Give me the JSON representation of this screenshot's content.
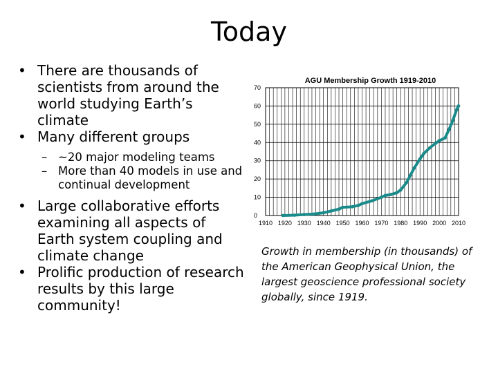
{
  "slide": {
    "title": "Today",
    "bullets": [
      {
        "text": "There are thousands of scientists from around the world studying Earth’s climate"
      },
      {
        "text": "Many different groups",
        "sub": [
          "~20 major modeling teams",
          "More than 40 models in use and continual development"
        ]
      },
      {
        "text": "Large collaborative efforts examining all aspects of Earth system coupling and climate change"
      },
      {
        "text": "Prolific production of research results by this large community!"
      }
    ],
    "bullet_char": "•",
    "dash_char": "–",
    "caption": "Growth in membership (in thousands) of the American Geophysical Union, the largest geoscience professional society globally, since 1919."
  },
  "chart_data": {
    "type": "line",
    "title": "AGU Membership Growth 1919-2010",
    "xlabel": "",
    "ylabel": "",
    "xlim": [
      1910,
      2010
    ],
    "ylim": [
      0,
      70
    ],
    "x_ticks": [
      1910,
      1920,
      1930,
      1940,
      1950,
      1960,
      1970,
      1980,
      1990,
      2000,
      2010
    ],
    "y_ticks": [
      0,
      10,
      20,
      30,
      40,
      50,
      60,
      70
    ],
    "grid": true,
    "legend": "none",
    "series": [
      {
        "color": "#1a8a8a",
        "x": [
          1919,
          1925,
          1930,
          1935,
          1940,
          1944,
          1948,
          1950,
          1955,
          1958,
          1960,
          1965,
          1970,
          1972,
          1975,
          1978,
          1980,
          1983,
          1985,
          1987,
          1990,
          1992,
          1995,
          1998,
          2000,
          2003,
          2005,
          2007,
          2009,
          2010
        ],
        "y": [
          0,
          0.2,
          0.5,
          0.8,
          1.5,
          2.5,
          3.5,
          4.5,
          4.8,
          5.5,
          6.5,
          8,
          10,
          11,
          11.5,
          12.5,
          14,
          18,
          22,
          26,
          31,
          34,
          37,
          39.5,
          41,
          42.5,
          47,
          52,
          58,
          60
        ]
      }
    ]
  }
}
